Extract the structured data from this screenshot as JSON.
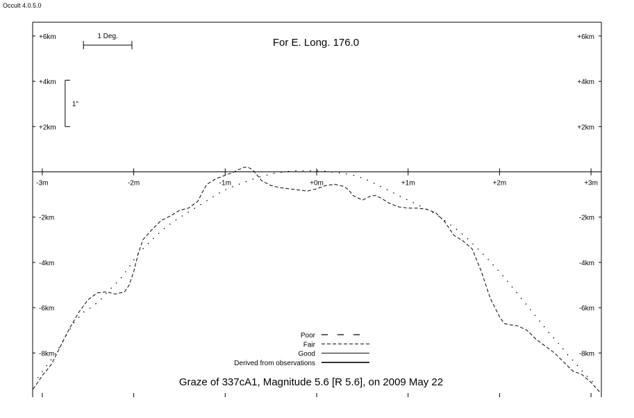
{
  "window": {
    "title": "Occult 4.0.5.0"
  },
  "chart_data": {
    "type": "line",
    "title": "Graze of  337cA1,  Magnitude 5.6 [R 5.6],  on 2009 May 22",
    "subtitle": "For E. Long. 176.0",
    "xlabel": "",
    "ylabel": "",
    "x_unit": "minutes",
    "y_unit": "km",
    "xlim": [
      -3.1,
      3.1
    ],
    "ylim": [
      -9.95,
      6.3
    ],
    "grid": false,
    "x_ticks": [
      {
        "value": -3,
        "label": "-3m"
      },
      {
        "value": -2,
        "label": "-2m"
      },
      {
        "value": -1,
        "label": "-1m"
      },
      {
        "value": 0,
        "label": "+0m"
      },
      {
        "value": 1,
        "label": "+1m"
      },
      {
        "value": 2,
        "label": "+2m"
      },
      {
        "value": 3,
        "label": "+3m"
      }
    ],
    "y_ticks": [
      {
        "value": 6,
        "label": "+6km"
      },
      {
        "value": 4,
        "label": "+4km"
      },
      {
        "value": 2,
        "label": "+2km"
      },
      {
        "value": -2,
        "label": "-2km"
      },
      {
        "value": -4,
        "label": "-4km"
      },
      {
        "value": -6,
        "label": "-6km"
      },
      {
        "value": -8,
        "label": "-8km"
      }
    ],
    "scale_bars": {
      "degree": {
        "label": "1 Deg.",
        "x_start": -2.55,
        "x_end": -2.02,
        "y": 5.6
      },
      "arcsec": {
        "label": "1\"",
        "x": -2.75,
        "y_start": 2.0,
        "y_end": 4.05
      }
    },
    "legend": {
      "position": "bottom-center",
      "entries": [
        {
          "label": "Poor",
          "style": "poor"
        },
        {
          "label": "Fair",
          "style": "fair"
        },
        {
          "label": "Good",
          "style": "good"
        },
        {
          "label": "Derived from observations",
          "style": "derived"
        }
      ]
    },
    "series": [
      {
        "style": "fair",
        "x": [
          -3.1,
          -3.0,
          -2.9,
          -2.8,
          -2.7,
          -2.6,
          -2.5,
          -2.4,
          -2.3,
          -2.2,
          -2.1,
          -2.05,
          -2.0,
          -1.95,
          -1.9,
          -1.8,
          -1.7,
          -1.6,
          -1.5,
          -1.4,
          -1.3,
          -1.25,
          -1.2,
          -1.1,
          -1.0,
          -0.9,
          -0.8,
          -0.75,
          -0.7,
          -0.65,
          -0.6,
          -0.5,
          -0.4,
          -0.3,
          -0.2,
          -0.1,
          0.0,
          0.1,
          0.2,
          0.3,
          0.35,
          0.4,
          0.5,
          0.6,
          0.65,
          0.7,
          0.8,
          0.9,
          1.0,
          1.1,
          1.2,
          1.3,
          1.4,
          1.5,
          1.6,
          1.7,
          1.8,
          1.9,
          2.0,
          2.05,
          2.1,
          2.2,
          2.3,
          2.4,
          2.5,
          2.6,
          2.7,
          2.8,
          2.9,
          3.0,
          3.1
        ],
        "y": [
          -9.6,
          -9.0,
          -8.5,
          -7.7,
          -6.9,
          -6.2,
          -5.65,
          -5.35,
          -5.3,
          -5.4,
          -5.3,
          -5.0,
          -4.4,
          -3.6,
          -3.0,
          -2.55,
          -2.15,
          -1.95,
          -1.7,
          -1.6,
          -1.3,
          -0.9,
          -0.55,
          -0.3,
          -0.15,
          0.0,
          0.2,
          0.2,
          0.1,
          -0.15,
          -0.4,
          -0.6,
          -0.7,
          -0.75,
          -0.8,
          -0.85,
          -0.75,
          -0.6,
          -0.55,
          -0.65,
          -0.8,
          -1.05,
          -1.25,
          -1.05,
          -1.05,
          -1.15,
          -1.4,
          -1.55,
          -1.6,
          -1.6,
          -1.65,
          -1.8,
          -2.2,
          -2.8,
          -3.05,
          -3.4,
          -4.4,
          -5.6,
          -6.4,
          -6.7,
          -6.75,
          -6.8,
          -7.0,
          -7.4,
          -7.7,
          -8.0,
          -8.4,
          -8.8,
          -8.95,
          -9.3,
          -9.75
        ]
      },
      {
        "style": "poor",
        "x": [
          -3.05,
          -2.95,
          -2.85,
          -2.75,
          -2.65,
          -2.55,
          -2.45,
          -2.35,
          -2.25,
          -2.15,
          -2.05,
          -1.95,
          -1.85,
          -1.75,
          -1.65,
          -1.55,
          -1.45,
          -1.35,
          -1.25,
          -1.15,
          -1.05,
          -0.95,
          -0.85,
          -0.75,
          -0.65,
          -0.55,
          -0.45,
          -0.35,
          -0.25,
          -0.15,
          -0.05,
          0.05,
          0.15,
          0.25,
          0.35,
          0.45,
          0.55,
          0.65,
          0.75,
          0.85,
          0.95,
          1.05,
          1.15,
          1.25,
          1.35,
          1.45,
          1.55,
          1.65,
          1.75,
          1.85,
          1.95,
          2.05,
          2.15,
          2.25,
          2.35,
          2.45,
          2.55,
          2.65,
          2.75,
          2.85,
          2.95,
          3.05
        ],
        "y": [
          -9.1,
          -8.55,
          -8.0,
          -7.3,
          -6.65,
          -6.2,
          -5.95,
          -5.6,
          -5.15,
          -4.75,
          -4.2,
          -3.6,
          -3.2,
          -2.8,
          -2.45,
          -2.15,
          -1.9,
          -1.65,
          -1.4,
          -1.15,
          -0.9,
          -0.7,
          -0.55,
          -0.4,
          -0.25,
          -0.15,
          -0.05,
          0.0,
          0.05,
          0.05,
          0.05,
          0.05,
          0.0,
          -0.05,
          -0.1,
          -0.2,
          -0.35,
          -0.55,
          -0.75,
          -0.95,
          -1.15,
          -1.35,
          -1.55,
          -1.75,
          -2.0,
          -2.3,
          -2.6,
          -2.95,
          -3.35,
          -3.75,
          -4.2,
          -4.65,
          -5.15,
          -5.65,
          -6.15,
          -6.65,
          -7.15,
          -7.6,
          -8.1,
          -8.55,
          -9.0,
          -9.4
        ]
      }
    ]
  }
}
